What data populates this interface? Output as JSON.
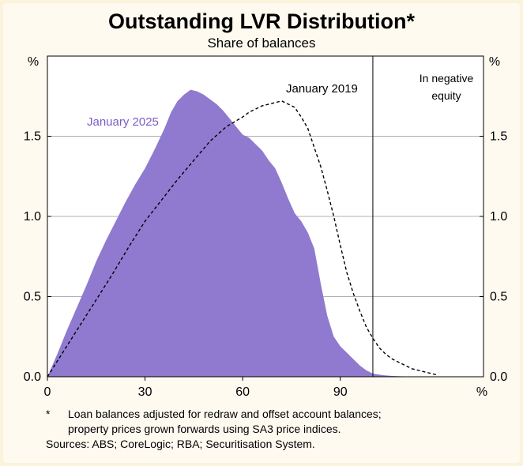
{
  "chart_data": {
    "type": "area",
    "title": "Outstanding LVR Distribution*",
    "subtitle": "Share of balances",
    "xlabel": "",
    "ylabel": "",
    "x_unit": "%",
    "y_unit_left": "%",
    "y_unit_right": "%",
    "xlim": [
      0,
      134
    ],
    "ylim": [
      0,
      2.0
    ],
    "x_ticks": [
      "0",
      "30",
      "60",
      "90"
    ],
    "y_ticks": [
      "0.0",
      "0.5",
      "1.0",
      "1.5"
    ],
    "x_tick_values": [
      0,
      30,
      60,
      90
    ],
    "y_tick_values": [
      0.0,
      0.5,
      1.0,
      1.5
    ],
    "grid": true,
    "reference_line_x": 100,
    "annotations": {
      "negative_equity": "In negative\nequity"
    },
    "series": [
      {
        "name": "January 2025",
        "style": "filled area",
        "color": "#8f7ad0",
        "x": [
          0,
          3,
          6,
          9,
          12,
          15,
          18,
          21,
          24,
          27,
          30,
          33,
          36,
          38,
          40,
          42,
          44,
          46,
          48,
          50,
          52,
          54,
          56,
          58,
          60,
          62,
          64,
          66,
          68,
          70,
          72,
          74,
          76,
          78,
          80,
          82,
          84,
          86,
          88,
          90,
          92,
          94,
          96,
          98,
          100,
          103,
          106,
          110,
          115,
          120
        ],
        "values": [
          0.0,
          0.14,
          0.29,
          0.43,
          0.57,
          0.72,
          0.85,
          0.97,
          1.09,
          1.2,
          1.3,
          1.42,
          1.55,
          1.65,
          1.72,
          1.76,
          1.79,
          1.78,
          1.76,
          1.73,
          1.7,
          1.66,
          1.61,
          1.56,
          1.51,
          1.49,
          1.45,
          1.41,
          1.35,
          1.3,
          1.21,
          1.11,
          1.02,
          0.97,
          0.9,
          0.8,
          0.58,
          0.38,
          0.25,
          0.19,
          0.15,
          0.11,
          0.07,
          0.04,
          0.02,
          0.01,
          0.005,
          0.002,
          0.001,
          0.0
        ]
      },
      {
        "name": "January 2019",
        "style": "dashed line",
        "color": "#000000",
        "x": [
          0,
          5,
          10,
          15,
          20,
          25,
          30,
          35,
          40,
          45,
          50,
          55,
          60,
          62,
          64,
          66,
          68,
          70,
          72,
          74,
          76,
          78,
          80,
          82,
          84,
          86,
          88,
          90,
          92,
          94,
          96,
          98,
          100,
          102,
          104,
          106,
          108,
          110,
          112,
          114,
          116,
          118,
          120
        ],
        "values": [
          0.0,
          0.16,
          0.32,
          0.48,
          0.64,
          0.81,
          0.97,
          1.1,
          1.23,
          1.35,
          1.47,
          1.56,
          1.62,
          1.65,
          1.67,
          1.69,
          1.7,
          1.71,
          1.72,
          1.7,
          1.68,
          1.62,
          1.55,
          1.43,
          1.31,
          1.16,
          1.0,
          0.82,
          0.65,
          0.52,
          0.41,
          0.31,
          0.24,
          0.18,
          0.14,
          0.11,
          0.09,
          0.07,
          0.05,
          0.04,
          0.03,
          0.02,
          0.01
        ]
      }
    ]
  },
  "footnotes": {
    "marker": "*",
    "text": "Loan balances adjusted for redraw and offset account balances;\nproperty prices grown forwards using SA3 price indices.",
    "sources": "Sources: ABS; CoreLogic; RBA; Securitisation System."
  },
  "colors": {
    "background": "#fbf3dc",
    "plot_area": "#ffffff",
    "fill": "#8f7ad0",
    "label": "#7b5cc7"
  }
}
